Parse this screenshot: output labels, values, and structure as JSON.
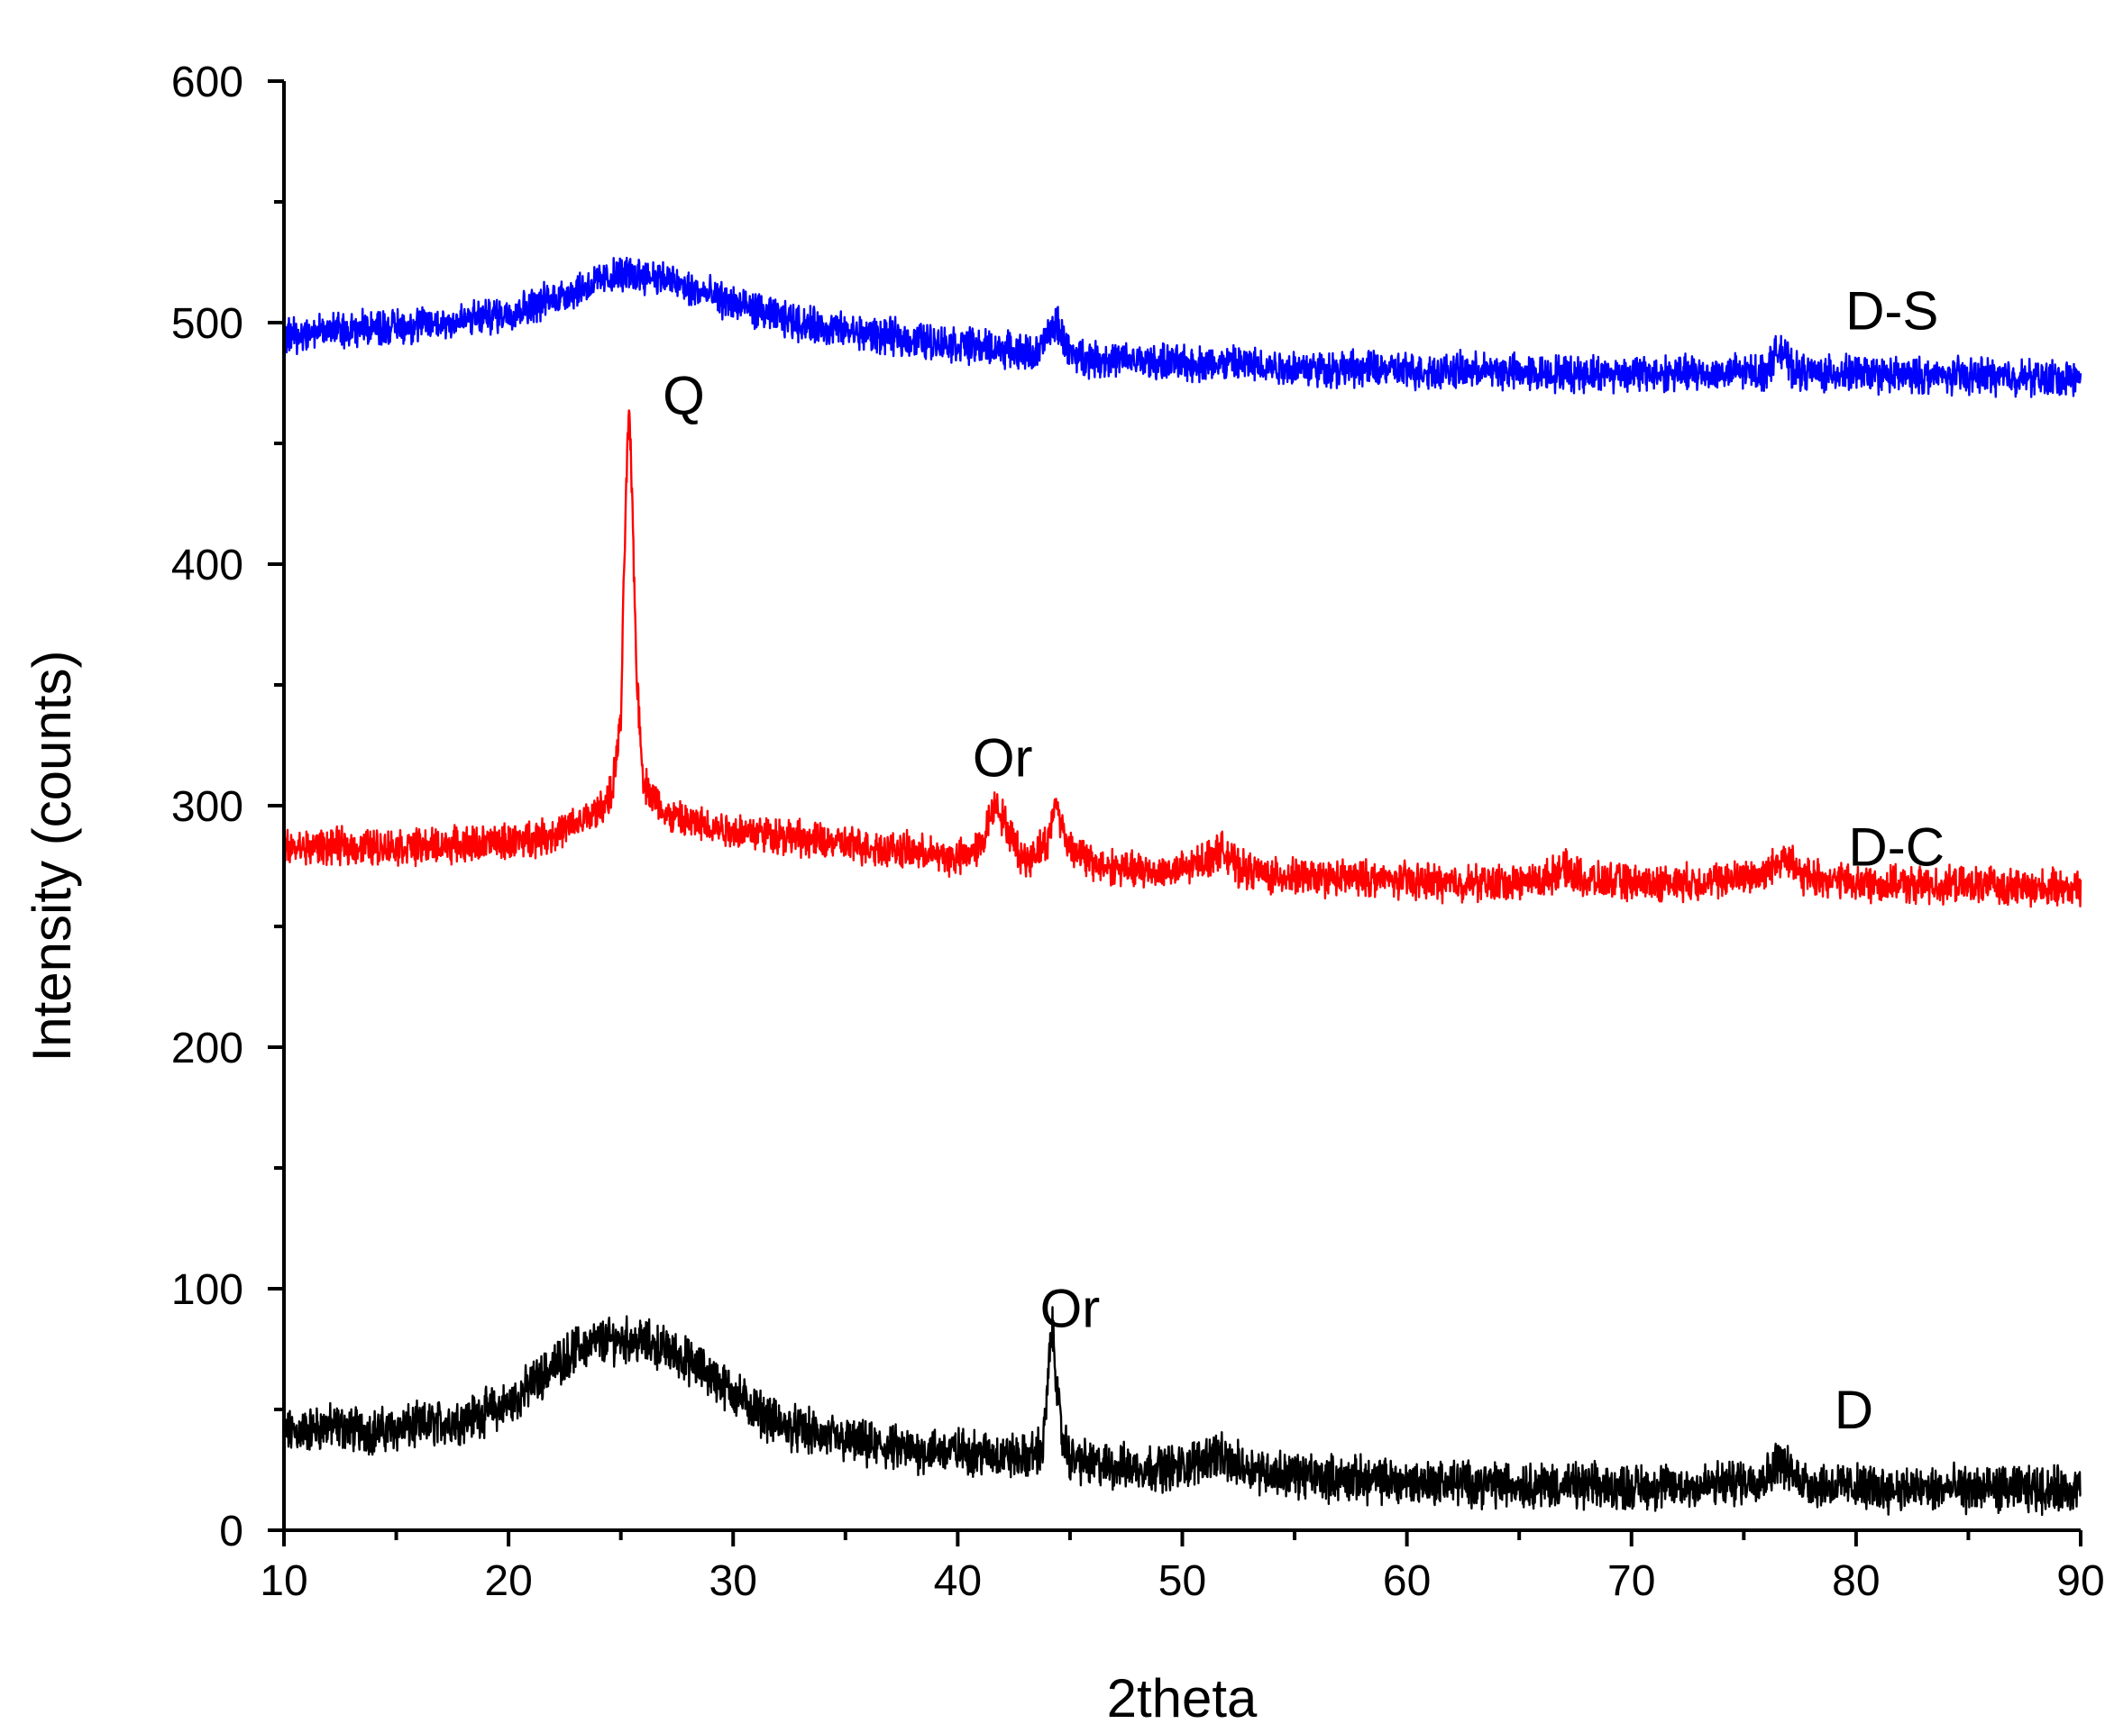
{
  "chart_data": {
    "type": "line",
    "title": "",
    "xlabel": "2theta",
    "ylabel": "Intensity (counts)",
    "xlim": [
      10,
      90
    ],
    "ylim": [
      0,
      600
    ],
    "x_ticks": [
      "10",
      "20",
      "30",
      "40",
      "50",
      "60",
      "70",
      "80",
      "90"
    ],
    "y_ticks": [
      "0",
      "100",
      "200",
      "300",
      "400",
      "500",
      "600"
    ],
    "grid": false,
    "legend": "none",
    "series": [
      {
        "name": "D",
        "color": "#000000",
        "points": [
          [
            10,
            40
          ],
          [
            12,
            43
          ],
          [
            14,
            41
          ],
          [
            16,
            43
          ],
          [
            18,
            46
          ],
          [
            20,
            52
          ],
          [
            21,
            60
          ],
          [
            22,
            68
          ],
          [
            23,
            75
          ],
          [
            24,
            78
          ],
          [
            25,
            79
          ],
          [
            26,
            78
          ],
          [
            27,
            75
          ],
          [
            28,
            70
          ],
          [
            29,
            64
          ],
          [
            30,
            57
          ],
          [
            31,
            50
          ],
          [
            32,
            44
          ],
          [
            34,
            39
          ],
          [
            36,
            35
          ],
          [
            38,
            33
          ],
          [
            40,
            33
          ],
          [
            41,
            32
          ],
          [
            42,
            31
          ],
          [
            43,
            30
          ],
          [
            43.8,
            34
          ],
          [
            44.2,
            85
          ],
          [
            44.6,
            40
          ],
          [
            45,
            30
          ],
          [
            46,
            27
          ],
          [
            48,
            26
          ],
          [
            50,
            26
          ],
          [
            51.5,
            32
          ],
          [
            52,
            28
          ],
          [
            54,
            24
          ],
          [
            56,
            22
          ],
          [
            58,
            21
          ],
          [
            60,
            20
          ],
          [
            62,
            20
          ],
          [
            64,
            19
          ],
          [
            66,
            19
          ],
          [
            68,
            18
          ],
          [
            70,
            18
          ],
          [
            72,
            18
          ],
          [
            74,
            19
          ],
          [
            76,
            22
          ],
          [
            76.6,
            30
          ],
          [
            77,
            24
          ],
          [
            78,
            19
          ],
          [
            80,
            18
          ],
          [
            82,
            17
          ],
          [
            84,
            17
          ],
          [
            86,
            17
          ],
          [
            88,
            17
          ],
          [
            90,
            17
          ]
        ]
      },
      {
        "name": "D-C",
        "color": "#ff0000",
        "points": [
          [
            10,
            282
          ],
          [
            12,
            283
          ],
          [
            14,
            283
          ],
          [
            16,
            283
          ],
          [
            18,
            284
          ],
          [
            20,
            285
          ],
          [
            22,
            288
          ],
          [
            23,
            292
          ],
          [
            24,
            298
          ],
          [
            24.6,
            305
          ],
          [
            25,
            335
          ],
          [
            25.2,
            420
          ],
          [
            25.35,
            465
          ],
          [
            25.5,
            430
          ],
          [
            25.7,
            355
          ],
          [
            26,
            310
          ],
          [
            27,
            296
          ],
          [
            28,
            293
          ],
          [
            30,
            290
          ],
          [
            32,
            288
          ],
          [
            34,
            285
          ],
          [
            36,
            283
          ],
          [
            38,
            281
          ],
          [
            40,
            278
          ],
          [
            41,
            283
          ],
          [
            41.7,
            302
          ],
          [
            42.3,
            288
          ],
          [
            43,
            277
          ],
          [
            44,
            285
          ],
          [
            44.4,
            302
          ],
          [
            44.8,
            285
          ],
          [
            46,
            276
          ],
          [
            48,
            273
          ],
          [
            50,
            273
          ],
          [
            51.8,
            282
          ],
          [
            52.5,
            274
          ],
          [
            54,
            271
          ],
          [
            56,
            270
          ],
          [
            58,
            270
          ],
          [
            60,
            269
          ],
          [
            62,
            268
          ],
          [
            64,
            268
          ],
          [
            66,
            269
          ],
          [
            67,
            274
          ],
          [
            68,
            269
          ],
          [
            70,
            268
          ],
          [
            72,
            268
          ],
          [
            74,
            269
          ],
          [
            76,
            272
          ],
          [
            76.8,
            280
          ],
          [
            77.5,
            271
          ],
          [
            80,
            268
          ],
          [
            82,
            267
          ],
          [
            84,
            267
          ],
          [
            86,
            267
          ],
          [
            88,
            266
          ],
          [
            90,
            266
          ]
        ]
      },
      {
        "name": "D-S",
        "color": "#0000ff",
        "points": [
          [
            10,
            495
          ],
          [
            12,
            497
          ],
          [
            14,
            498
          ],
          [
            16,
            499
          ],
          [
            18,
            501
          ],
          [
            20,
            504
          ],
          [
            22,
            510
          ],
          [
            24,
            517
          ],
          [
            25,
            520
          ],
          [
            26,
            520
          ],
          [
            27,
            518
          ],
          [
            28,
            514
          ],
          [
            30,
            508
          ],
          [
            32,
            502
          ],
          [
            34,
            498
          ],
          [
            36,
            495
          ],
          [
            38,
            493
          ],
          [
            40,
            491
          ],
          [
            42,
            489
          ],
          [
            43.5,
            487
          ],
          [
            44.4,
            500
          ],
          [
            45,
            487
          ],
          [
            46,
            485
          ],
          [
            48,
            484
          ],
          [
            50,
            483
          ],
          [
            52,
            483
          ],
          [
            54,
            482
          ],
          [
            56,
            481
          ],
          [
            58,
            481
          ],
          [
            60,
            480
          ],
          [
            62,
            480
          ],
          [
            64,
            480
          ],
          [
            66,
            479
          ],
          [
            68,
            479
          ],
          [
            70,
            479
          ],
          [
            72,
            479
          ],
          [
            74,
            479
          ],
          [
            76,
            480
          ],
          [
            76.6,
            490
          ],
          [
            77.2,
            480
          ],
          [
            78,
            479
          ],
          [
            80,
            479
          ],
          [
            82,
            478
          ],
          [
            84,
            478
          ],
          [
            86,
            478
          ],
          [
            88,
            477
          ],
          [
            90,
            477
          ]
        ]
      }
    ],
    "annotations": [
      {
        "id": "q",
        "text": "Q",
        "x": 27.8,
        "y": 470
      },
      {
        "id": "or-dc",
        "text": "Or",
        "x": 42.0,
        "y": 320
      },
      {
        "id": "or-d",
        "text": "Or",
        "x": 45.0,
        "y": 92
      },
      {
        "id": "label-ds",
        "text": "D-S",
        "x": 81.6,
        "y": 505
      },
      {
        "id": "label-dc",
        "text": "D-C",
        "x": 81.8,
        "y": 283
      },
      {
        "id": "label-d",
        "text": "D",
        "x": 79.9,
        "y": 50
      }
    ]
  }
}
